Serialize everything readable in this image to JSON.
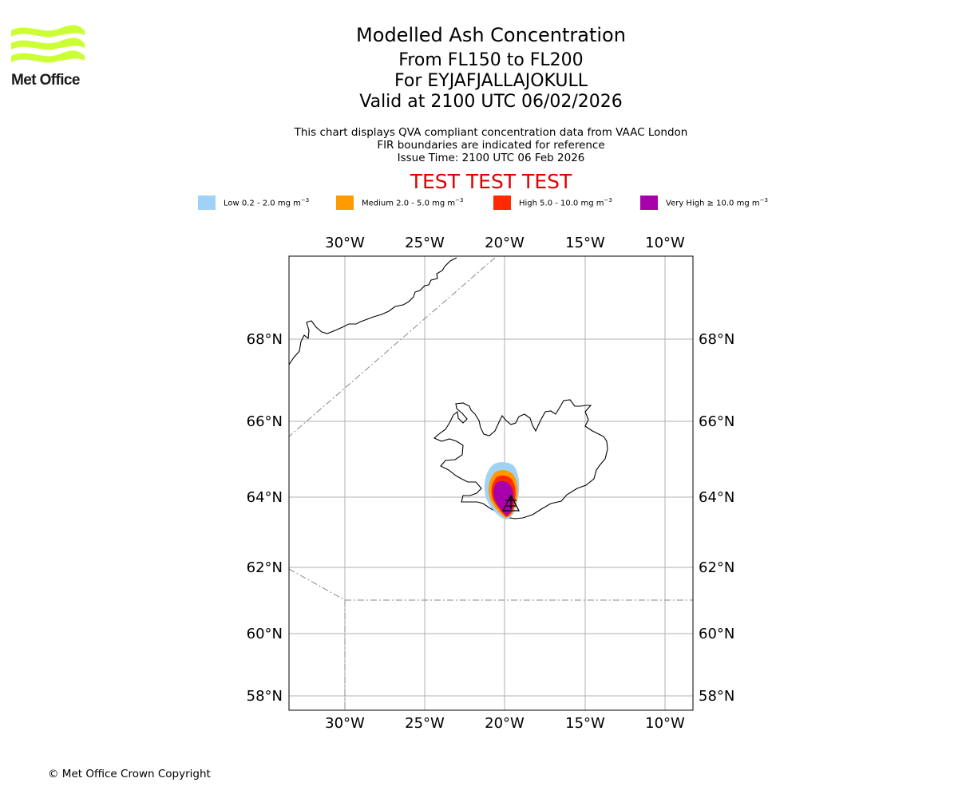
{
  "header": {
    "title": "Modelled Ash Concentration",
    "flight_levels": "From FL150 to FL200",
    "volcano": "For EYJAFJALLAJOKULL",
    "valid": "Valid at 2100 UTC 06/02/2026",
    "note1": "This chart displays QVA compliant concentration data from VAAC London",
    "note2": "FIR boundaries are indicated for reference",
    "issue_time": "Issue Time: 2100 UTC 06 Feb 2026",
    "test_banner": "TEST TEST TEST"
  },
  "logo": {
    "name": "Met Office",
    "accent_color": "#ccff33"
  },
  "legend": [
    {
      "label": "Low 0.2 - 2.0 mg m",
      "color": "#a0d2f8"
    },
    {
      "label": "Medium 2.0 - 5.0 mg m",
      "color": "#ff9a00"
    },
    {
      "label": "High 5.0 - 10.0 mg m",
      "color": "#ff2a00"
    },
    {
      "label": "Very High ≥ 10.0 mg m",
      "color": "#a800aa"
    }
  ],
  "legend_exponent": "−3",
  "map": {
    "lon_ticks": [
      "30°W",
      "25°W",
      "20°W",
      "15°W",
      "10°W"
    ],
    "lat_ticks": [
      "68°N",
      "66°N",
      "64°N",
      "62°N",
      "60°N",
      "58°N"
    ],
    "volcano_icon": "volcano-triangle-icon"
  },
  "footer": {
    "copyright": "© Met Office Crown Copyright"
  }
}
